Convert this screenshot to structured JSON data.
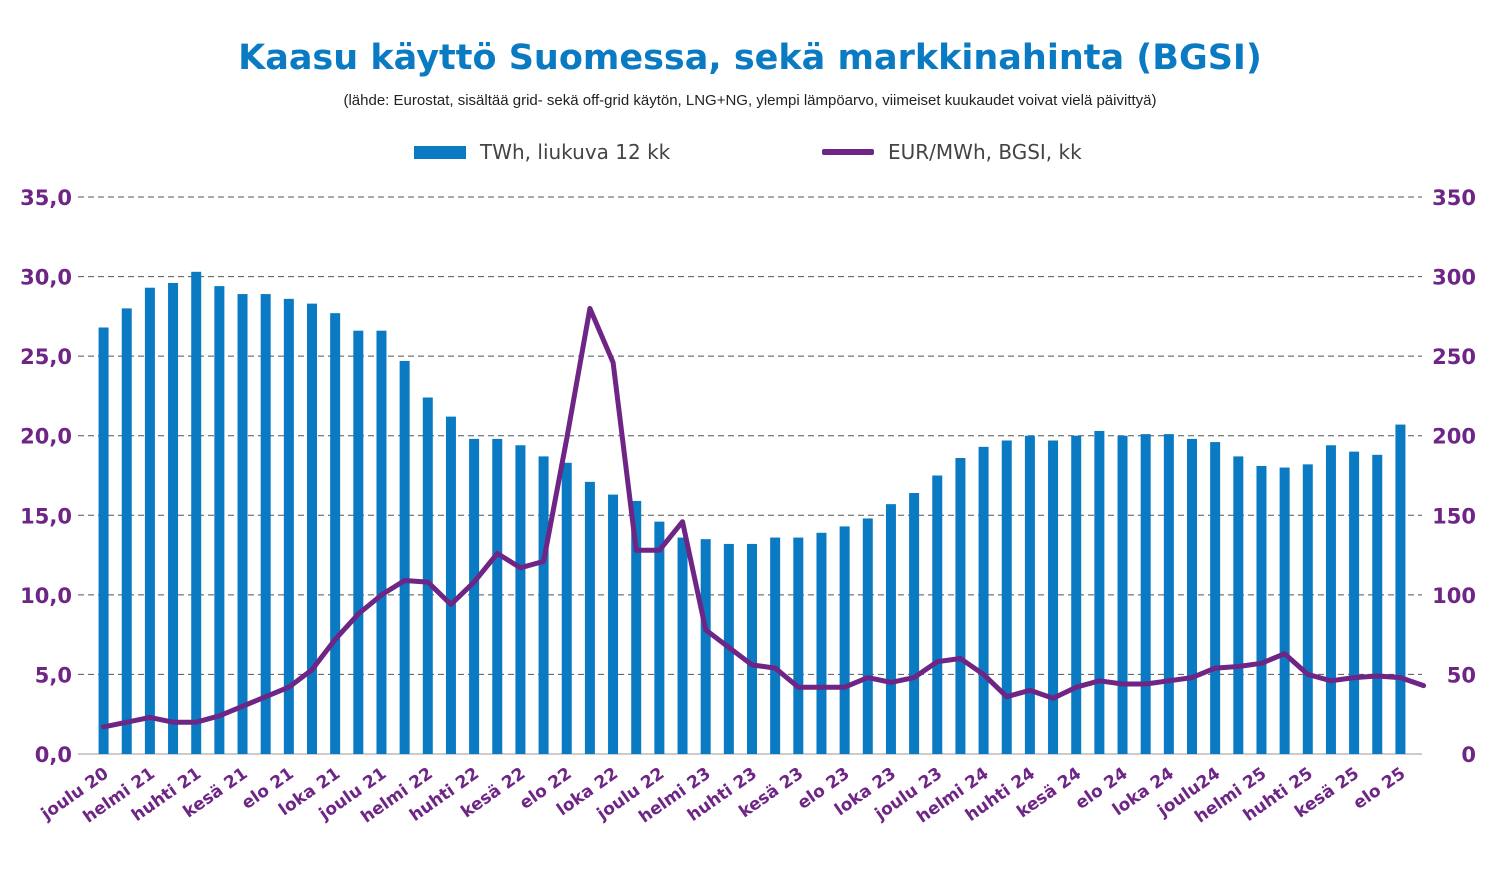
{
  "chart_data": {
    "type": "bar+line",
    "title": "Kaasu käyttö Suomessa, sekä markkinahinta (BGSI)",
    "subtitle": "(lähde: Eurostat, sisältää grid- sekä off-grid käytön, LNG+NG, ylempi lämpöarvo, viimeiset kuukaudet voivat vielä päivittyä)",
    "legend_position": "top",
    "grid": "dashed horizontal",
    "colors": {
      "bars": "#0a7ac2",
      "line": "#6e2585",
      "title": "#0a7ac2",
      "axis_labels": "#6e2585"
    },
    "left_axis": {
      "min": 0,
      "max": 35,
      "step": 5,
      "tick_labels": [
        "0,0",
        "5,0",
        "10,0",
        "15,0",
        "20,0",
        "25,0",
        "30,0",
        "35,0"
      ]
    },
    "right_axis": {
      "min": 0,
      "max": 350,
      "step": 50,
      "tick_labels": [
        "0",
        "50",
        "100",
        "150",
        "200",
        "250",
        "300",
        "350"
      ]
    },
    "x_tick_labels": [
      "joulu 20",
      "helmi 21",
      "huhti 21",
      "kesä 21",
      "elo 21",
      "loka 21",
      "joulu 21",
      "helmi 22",
      "huhti 22",
      "kesä 22",
      "elo 22",
      "loka 22",
      "joulu 22",
      "helmi 23",
      "huhti 23",
      "kesä 23",
      "elo 23",
      "loka 23",
      "joulu 23",
      "helmi 24",
      "huhti 24",
      "kesä 24",
      "elo 24",
      "loka 24",
      "joulu24",
      "helmi 25",
      "huhti 25",
      "kesä 25",
      "elo 25"
    ],
    "series": [
      {
        "name": "TWh, liukuva 12 kk",
        "type": "bar",
        "axis": "left",
        "values": [
          26.8,
          28.0,
          29.3,
          29.6,
          30.3,
          29.4,
          28.9,
          28.9,
          28.6,
          28.3,
          27.7,
          26.6,
          26.6,
          24.7,
          22.4,
          21.2,
          19.8,
          19.8,
          19.4,
          18.7,
          18.3,
          17.1,
          16.3,
          15.9,
          14.6,
          13.6,
          13.5,
          13.2,
          13.2,
          13.6,
          13.6,
          13.9,
          14.3,
          14.8,
          15.7,
          16.4,
          17.5,
          18.6,
          19.3,
          19.7,
          20.0,
          19.7,
          20.0,
          20.3,
          20.0,
          20.1,
          20.1,
          19.8,
          19.6,
          18.7,
          18.1,
          18.0,
          18.2,
          19.4,
          19.0,
          18.8,
          20.7
        ]
      },
      {
        "name": "EUR/MWh, BGSI, kk",
        "type": "line",
        "axis": "right",
        "values": [
          17,
          20,
          23,
          20,
          20,
          24,
          30,
          36,
          42,
          53,
          72,
          88,
          100,
          109,
          108,
          94,
          108,
          126,
          117,
          121,
          198,
          280,
          246,
          128,
          128,
          146,
          78,
          67,
          56,
          54,
          42,
          42,
          42,
          48,
          45,
          48,
          58,
          60,
          50,
          36,
          40,
          35,
          42,
          46,
          44,
          44,
          46,
          48,
          54,
          55,
          57,
          63,
          50,
          46,
          48,
          49,
          48,
          43
        ]
      }
    ]
  }
}
